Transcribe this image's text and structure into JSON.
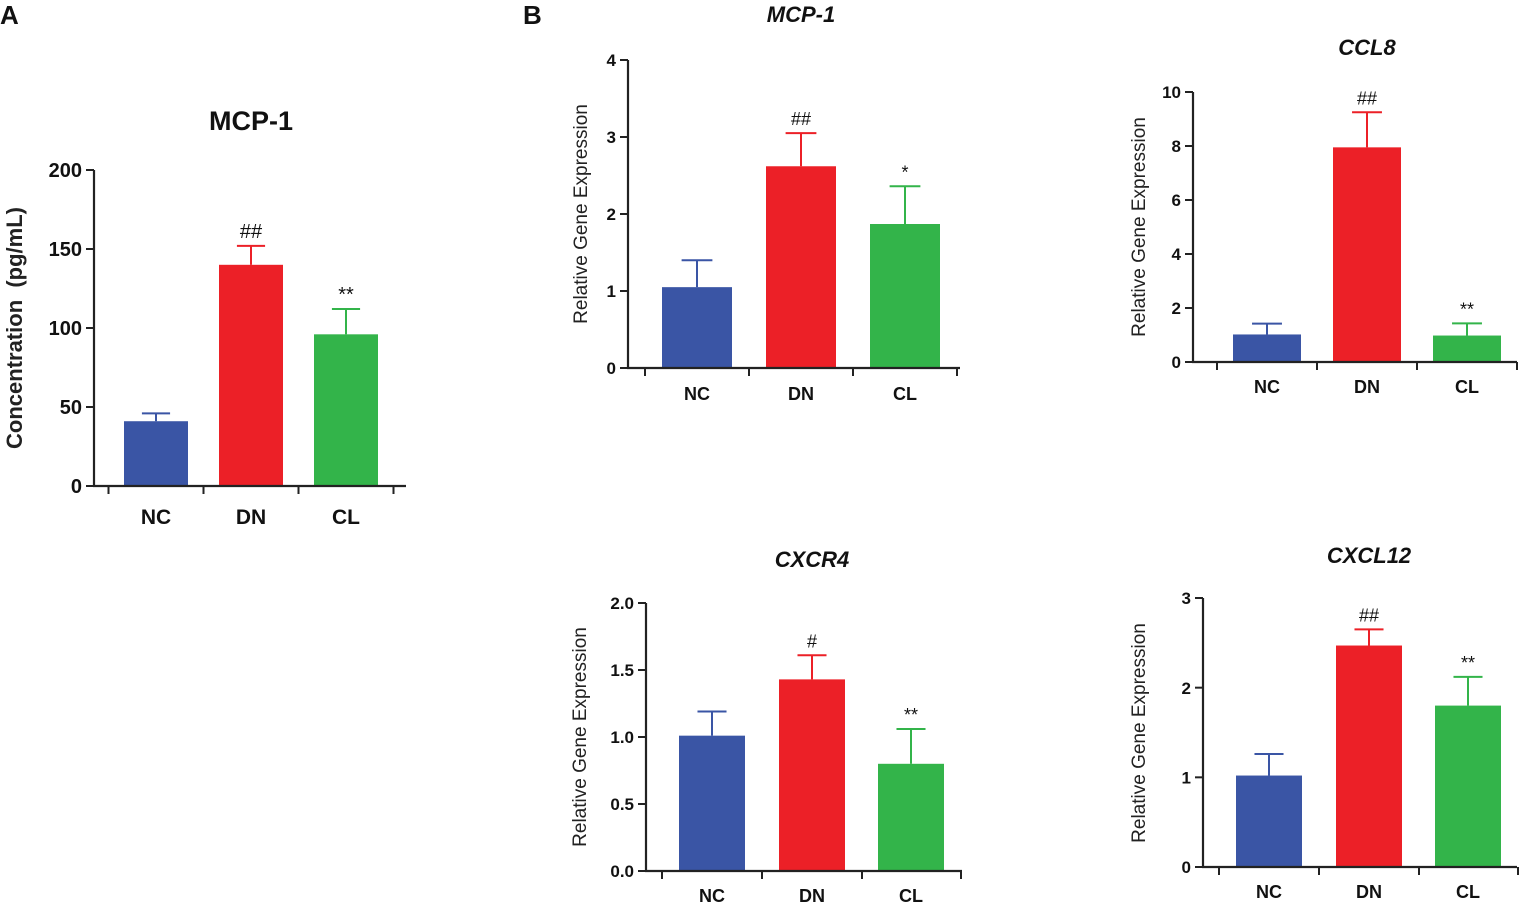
{
  "panel_labels": [
    "A",
    "B"
  ],
  "colors": {
    "NC": "#3a55a5",
    "DN": "#ec2027",
    "CL": "#33b44a",
    "axis": "#222222"
  },
  "chart_data": [
    {
      "id": "A-mcp1-protein",
      "panel": "A",
      "type": "bar",
      "title": "MCP-1",
      "title_style": "bold",
      "xlabel": "",
      "ylabel": "Concentration  (pg/mL)",
      "ylabel_style": "bold",
      "ylim": [
        0,
        200
      ],
      "yticks": [
        0,
        50,
        100,
        150,
        200
      ],
      "ytick_labels": [
        "0",
        "50",
        "100",
        "150",
        "200"
      ],
      "categories": [
        "NC",
        "DN",
        "CL"
      ],
      "values": [
        41,
        140,
        96
      ],
      "errors": [
        5,
        12,
        16
      ],
      "annotations": [
        "",
        "##",
        "**"
      ]
    },
    {
      "id": "B-mcp1",
      "panel": "B",
      "type": "bar",
      "title": "MCP-1",
      "title_style": "bold-italic",
      "xlabel": "",
      "ylabel": "Relative Gene Expression",
      "ylabel_style": "normal",
      "ylim": [
        0,
        4
      ],
      "yticks": [
        0,
        1,
        2,
        3,
        4
      ],
      "ytick_labels": [
        "0",
        "1",
        "2",
        "3",
        "4"
      ],
      "categories": [
        "NC",
        "DN",
        "CL"
      ],
      "values": [
        1.05,
        2.62,
        1.87
      ],
      "errors": [
        0.35,
        0.43,
        0.49
      ],
      "annotations": [
        "",
        "##",
        "*"
      ]
    },
    {
      "id": "B-ccl8",
      "panel": "B",
      "type": "bar",
      "title": "CCL8",
      "title_style": "bold-italic",
      "xlabel": "",
      "ylabel": "Relative Gene Expression",
      "ylabel_style": "normal",
      "ylim": [
        0,
        10
      ],
      "yticks": [
        0,
        2,
        4,
        6,
        8,
        10
      ],
      "ytick_labels": [
        "0",
        "2",
        "4",
        "6",
        "8",
        "10"
      ],
      "categories": [
        "NC",
        "DN",
        "CL"
      ],
      "values": [
        1.02,
        7.95,
        0.98
      ],
      "errors": [
        0.4,
        1.3,
        0.45
      ],
      "annotations": [
        "",
        "##",
        "**"
      ]
    },
    {
      "id": "B-cxcr4",
      "panel": "B",
      "type": "bar",
      "title": "CXCR4",
      "title_style": "bold-italic",
      "xlabel": "",
      "ylabel": "Relative Gene Expression",
      "ylabel_style": "normal",
      "ylim": [
        0,
        2
      ],
      "yticks": [
        0,
        0.5,
        1,
        1.5,
        2
      ],
      "ytick_labels": [
        "0.0",
        "0.5",
        "1.0",
        "1.5",
        "2.0"
      ],
      "categories": [
        "NC",
        "DN",
        "CL"
      ],
      "values": [
        1.01,
        1.43,
        0.8
      ],
      "errors": [
        0.18,
        0.18,
        0.26
      ],
      "annotations": [
        "",
        "#",
        "**"
      ]
    },
    {
      "id": "B-cxcl12",
      "panel": "B",
      "type": "bar",
      "title": "CXCL12",
      "title_style": "bold-italic",
      "xlabel": "",
      "ylabel": "Relative Gene Expression",
      "ylabel_style": "normal",
      "ylim": [
        0,
        3
      ],
      "yticks": [
        0,
        1,
        2,
        3
      ],
      "ytick_labels": [
        "0",
        "1",
        "2",
        "3"
      ],
      "categories": [
        "NC",
        "DN",
        "CL"
      ],
      "values": [
        1.02,
        2.47,
        1.8
      ],
      "errors": [
        0.24,
        0.18,
        0.32
      ],
      "annotations": [
        "",
        "##",
        "**"
      ]
    }
  ]
}
